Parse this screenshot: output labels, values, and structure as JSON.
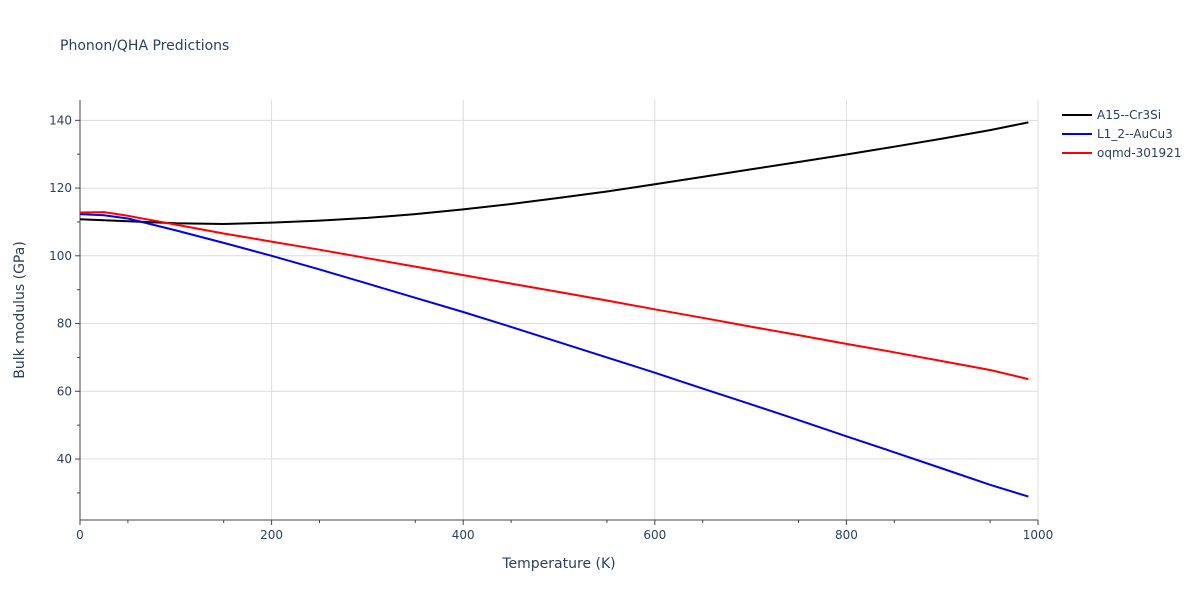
{
  "chart_data": {
    "type": "line",
    "title": "Phonon/QHA Predictions",
    "xlabel": "Temperature (K)",
    "ylabel": "Bulk modulus (GPa)",
    "xlim": [
      0,
      1000
    ],
    "ylim": [
      22,
      146
    ],
    "x_ticks": [
      0,
      200,
      400,
      600,
      800,
      1000
    ],
    "y_ticks": [
      40,
      60,
      80,
      100,
      120,
      140
    ],
    "x_tick_labels": [
      "0",
      "200",
      "400",
      "600",
      "800",
      "1000"
    ],
    "y_tick_labels": [
      "40",
      "60",
      "80",
      "100",
      "120",
      "140"
    ],
    "grid": true,
    "legend_position": "top-right outside",
    "series": [
      {
        "name": "A15--Cr3Si",
        "color": "#000000",
        "x": [
          0,
          50,
          100,
          150,
          200,
          250,
          300,
          350,
          400,
          450,
          500,
          550,
          600,
          650,
          700,
          750,
          800,
          850,
          900,
          950,
          990
        ],
        "y": [
          110.8,
          110.2,
          109.6,
          109.4,
          109.8,
          110.4,
          111.2,
          112.3,
          113.7,
          115.3,
          117.1,
          119.0,
          121.1,
          123.3,
          125.5,
          127.7,
          129.9,
          132.2,
          134.6,
          137.1,
          139.4
        ]
      },
      {
        "name": "L1_2--AuCu3",
        "color": "#0000ee",
        "x": [
          0,
          25,
          50,
          100,
          150,
          200,
          250,
          300,
          350,
          400,
          450,
          500,
          550,
          600,
          650,
          700,
          750,
          800,
          850,
          900,
          950,
          990
        ],
        "y": [
          112.3,
          112.0,
          111.0,
          107.5,
          103.8,
          100.0,
          96.0,
          91.8,
          87.6,
          83.4,
          79.0,
          74.5,
          70.0,
          65.5,
          60.8,
          56.2,
          51.5,
          46.7,
          42.0,
          37.2,
          32.4,
          28.9
        ]
      },
      {
        "name": "oqmd-301921",
        "color": "#ff0000",
        "x": [
          0,
          25,
          50,
          100,
          150,
          200,
          250,
          300,
          350,
          400,
          450,
          500,
          550,
          600,
          650,
          700,
          750,
          800,
          850,
          900,
          950,
          990
        ],
        "y": [
          112.8,
          112.9,
          111.8,
          109.2,
          106.6,
          104.2,
          101.8,
          99.3,
          96.8,
          94.3,
          91.8,
          89.3,
          86.8,
          84.2,
          81.7,
          79.1,
          76.6,
          74.0,
          71.5,
          68.9,
          66.3,
          63.6
        ]
      }
    ]
  }
}
